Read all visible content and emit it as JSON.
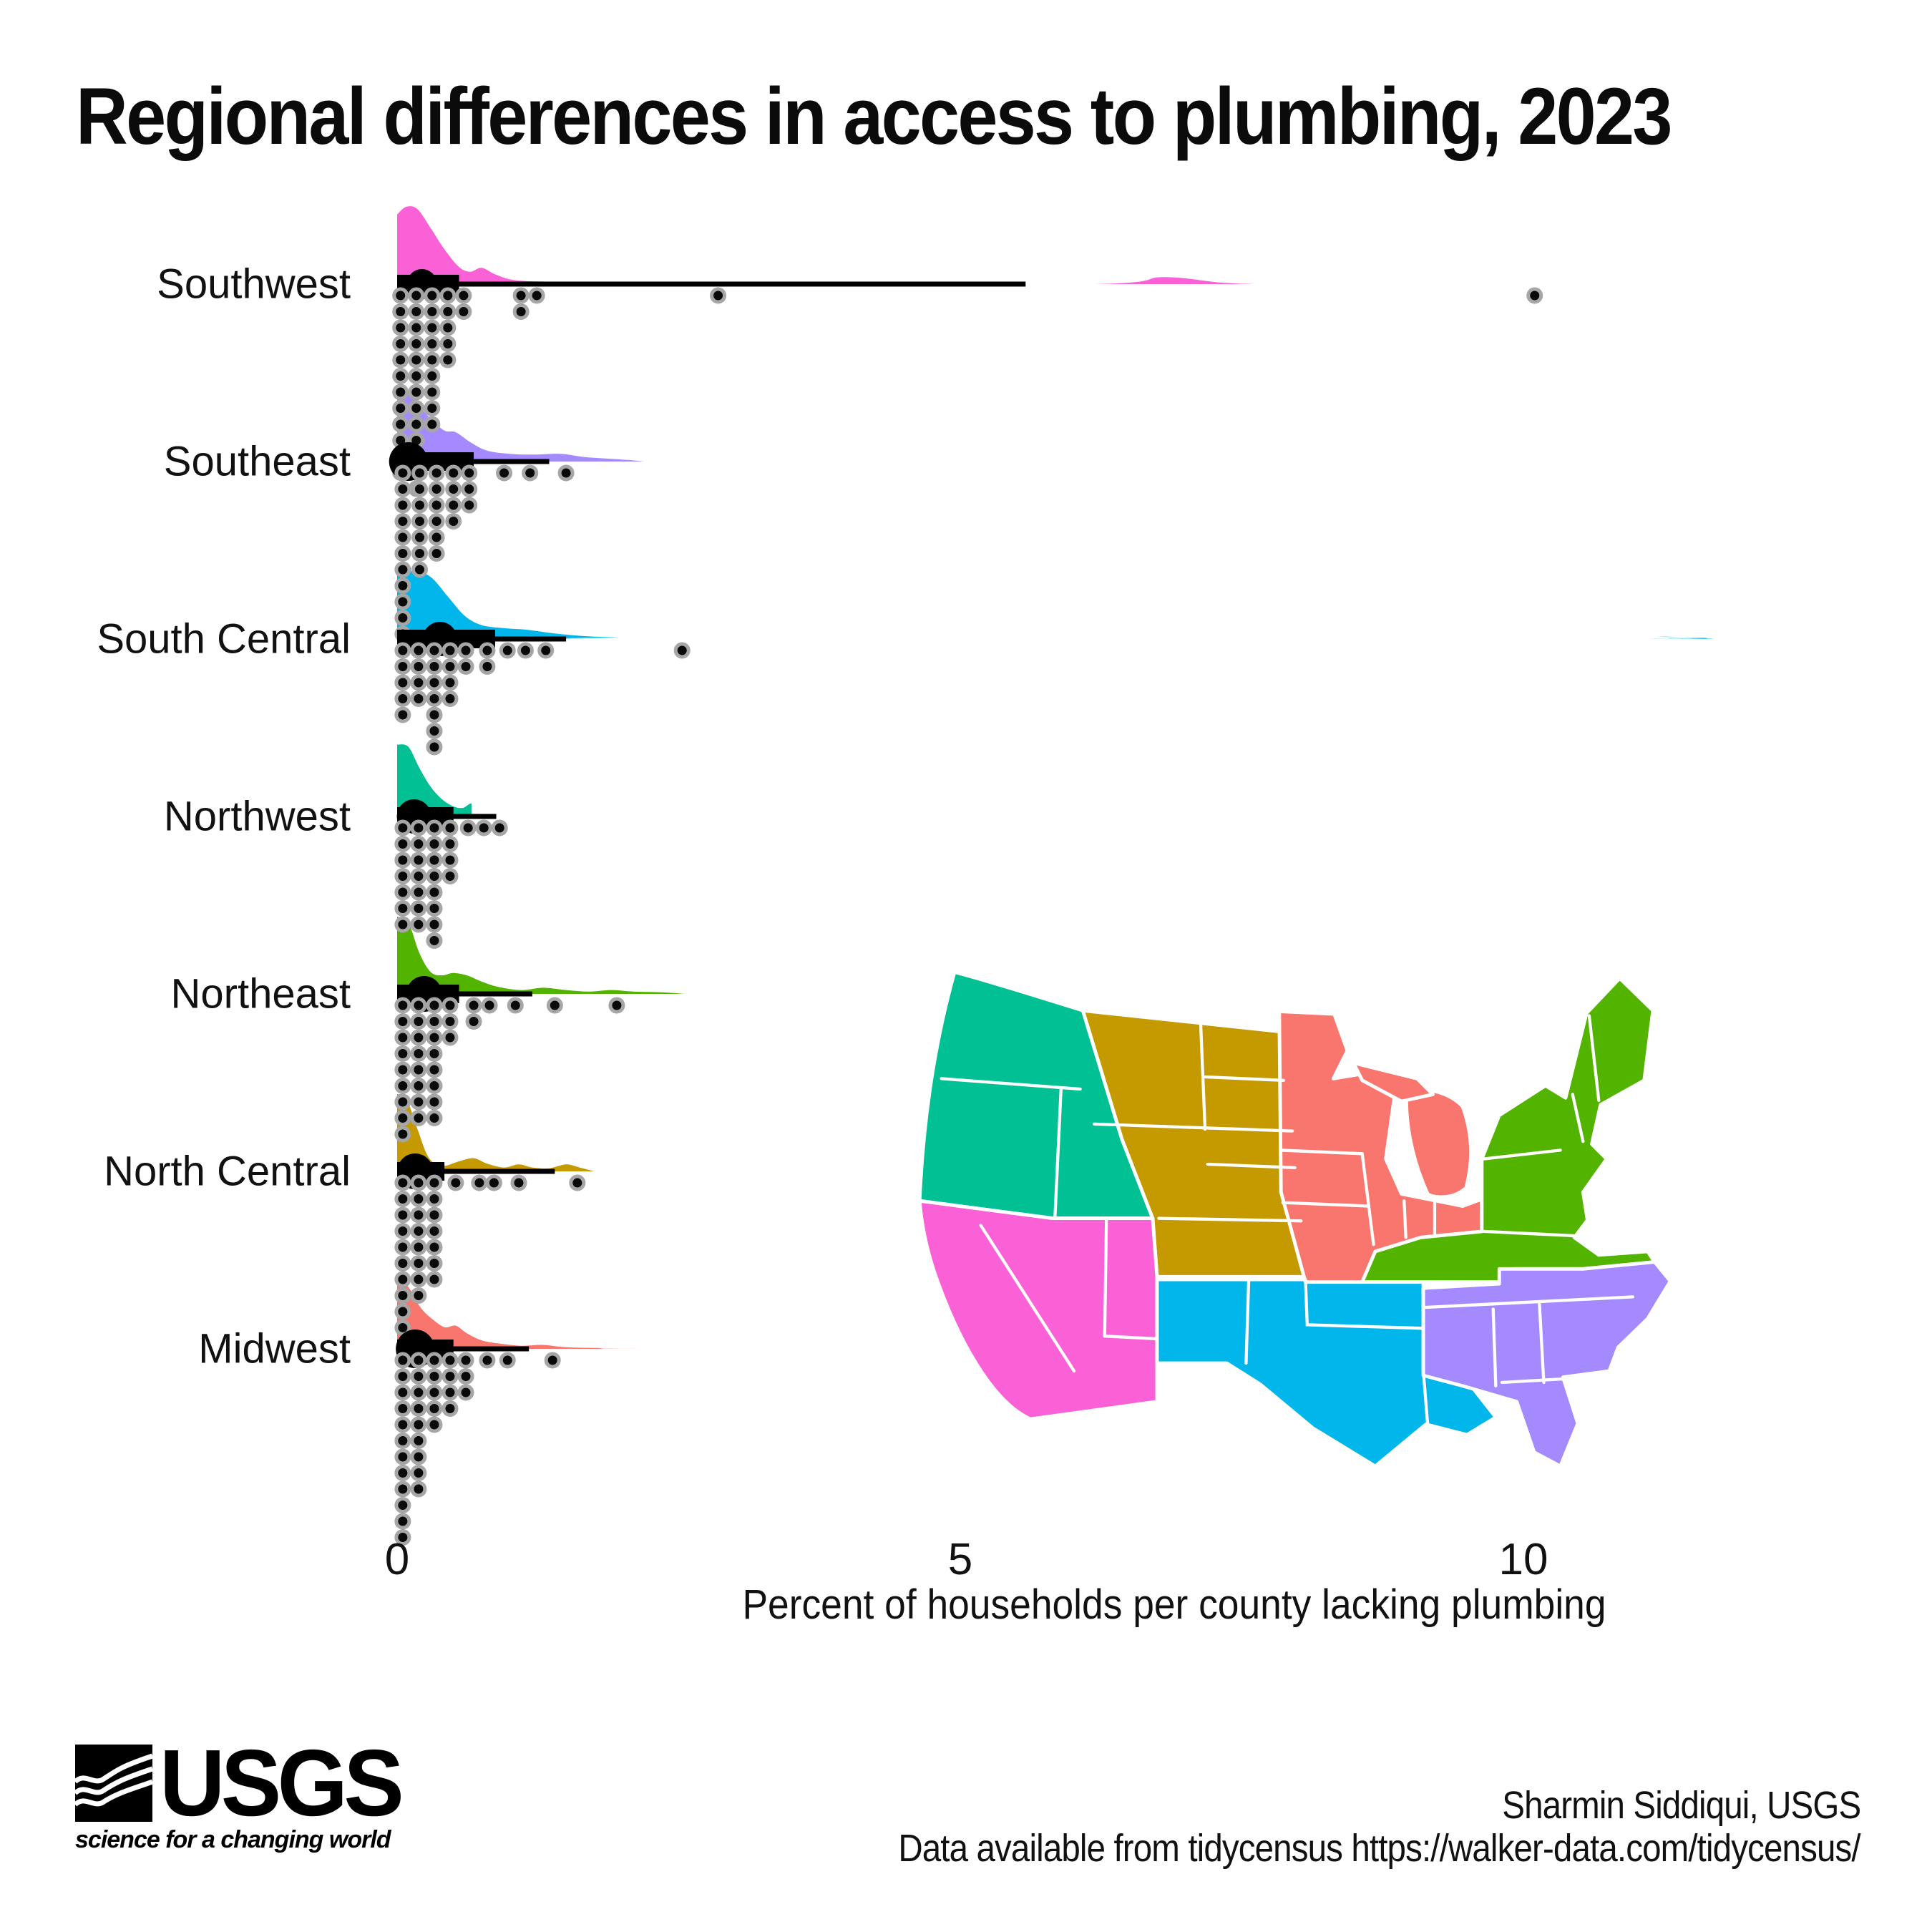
{
  "title": "Regional differences in access to plumbing, 2023",
  "footer": {
    "credit": "Sharmin Siddiqui, USGS",
    "source": "Data available from tidycensus https://walker-data.com/tidycensus/"
  },
  "logo": {
    "org": "USGS",
    "tagline": "science for a changing world"
  },
  "chart_data": {
    "type": "raincloud",
    "xlabel": "Percent of households per county lacking plumbing",
    "xlim": [
      0,
      12
    ],
    "x_ticks": [
      0,
      5,
      10
    ],
    "grid": false,
    "legend": "none",
    "regions": [
      {
        "name": "Southwest",
        "color": "#FB61D7",
        "density": [
          [
            0,
            0.9
          ],
          [
            0.08,
            1.0
          ],
          [
            0.18,
            0.97
          ],
          [
            0.3,
            0.72
          ],
          [
            0.42,
            0.45
          ],
          [
            0.55,
            0.22
          ],
          [
            0.65,
            0.16
          ],
          [
            0.75,
            0.21
          ],
          [
            0.88,
            0.12
          ],
          [
            1.05,
            0.05
          ],
          [
            1.4,
            0.03
          ],
          [
            2.0,
            0.02
          ],
          [
            3.2,
            0.0
          ],
          [
            6.2,
            0.0
          ],
          [
            6.8,
            0.09
          ],
          [
            7.3,
            0.02
          ],
          [
            7.6,
            0
          ]
        ],
        "box": {
          "q1": 0,
          "median": 0.22,
          "q3": 0.55,
          "whisker_high": 5.58
        },
        "median_dot_r": 21,
        "dots": [
          [
            0.03,
            12
          ],
          [
            0.17,
            13
          ],
          [
            0.31,
            9
          ],
          [
            0.45,
            5
          ],
          [
            0.59,
            2
          ],
          [
            1.1,
            2
          ],
          [
            1.24,
            1
          ],
          [
            2.85,
            1
          ],
          [
            10.1,
            1
          ]
        ]
      },
      {
        "name": "Southeast",
        "color": "#A58AFF",
        "density": [
          [
            0,
            0.95
          ],
          [
            0.1,
            0.92
          ],
          [
            0.2,
            0.72
          ],
          [
            0.3,
            0.55
          ],
          [
            0.42,
            0.4
          ],
          [
            0.52,
            0.38
          ],
          [
            0.65,
            0.25
          ],
          [
            0.8,
            0.14
          ],
          [
            1.0,
            0.1
          ],
          [
            1.2,
            0.09
          ],
          [
            1.45,
            0.1
          ],
          [
            1.65,
            0.06
          ],
          [
            1.85,
            0.04
          ],
          [
            2.05,
            0.02
          ],
          [
            2.2,
            0
          ]
        ],
        "box": {
          "q1": 0,
          "median": 0.1,
          "q3": 0.68,
          "whisker_high": 1.35
        },
        "median_dot_r": 27,
        "dots": [
          [
            0.05,
            11
          ],
          [
            0.2,
            7
          ],
          [
            0.35,
            6
          ],
          [
            0.5,
            4
          ],
          [
            0.64,
            3
          ],
          [
            0.95,
            1
          ],
          [
            1.18,
            1
          ],
          [
            1.5,
            1
          ]
        ]
      },
      {
        "name": "South Central",
        "color": "#00B6EB",
        "density": [
          [
            0,
            0.82
          ],
          [
            0.15,
            0.88
          ],
          [
            0.3,
            0.8
          ],
          [
            0.45,
            0.55
          ],
          [
            0.6,
            0.3
          ],
          [
            0.75,
            0.18
          ],
          [
            0.95,
            0.14
          ],
          [
            1.15,
            0.12
          ],
          [
            1.35,
            0.08
          ],
          [
            1.55,
            0.05
          ],
          [
            1.75,
            0.03
          ],
          [
            1.95,
            0.02
          ],
          [
            2.15,
            0.0
          ],
          [
            10.9,
            0.0
          ],
          [
            11.2,
            0.03
          ],
          [
            11.5,
            0.015
          ],
          [
            11.7,
            0
          ]
        ],
        "box": {
          "q1": 0,
          "median": 0.38,
          "q3": 0.87,
          "whisker_high": 1.5
        },
        "median_dot_r": 24,
        "dots": [
          [
            0.05,
            5
          ],
          [
            0.19,
            4
          ],
          [
            0.33,
            7
          ],
          [
            0.47,
            4
          ],
          [
            0.61,
            2
          ],
          [
            0.8,
            2
          ],
          [
            0.98,
            1
          ],
          [
            1.14,
            1
          ],
          [
            1.32,
            1
          ],
          [
            2.53,
            1
          ]
        ]
      },
      {
        "name": "Northwest",
        "color": "#00C094",
        "density": [
          [
            0,
            0.93
          ],
          [
            0.1,
            0.9
          ],
          [
            0.2,
            0.62
          ],
          [
            0.3,
            0.38
          ],
          [
            0.4,
            0.22
          ],
          [
            0.5,
            0.13
          ],
          [
            0.58,
            0.11
          ],
          [
            0.64,
            0.16
          ],
          [
            0.66,
            0.17
          ]
        ],
        "box": {
          "q1": 0,
          "median": 0.15,
          "q3": 0.5,
          "whisker_high": 0.88
        },
        "median_dot_r": 24,
        "dots": [
          [
            0.05,
            7
          ],
          [
            0.19,
            7
          ],
          [
            0.33,
            8
          ],
          [
            0.47,
            4
          ],
          [
            0.63,
            1
          ],
          [
            0.77,
            1
          ],
          [
            0.91,
            1
          ]
        ]
      },
      {
        "name": "Northeast",
        "color": "#53B400",
        "density": [
          [
            0,
            1.0
          ],
          [
            0.1,
            0.92
          ],
          [
            0.2,
            0.52
          ],
          [
            0.3,
            0.28
          ],
          [
            0.4,
            0.24
          ],
          [
            0.5,
            0.27
          ],
          [
            0.62,
            0.24
          ],
          [
            0.75,
            0.16
          ],
          [
            0.9,
            0.09
          ],
          [
            1.1,
            0.05
          ],
          [
            1.3,
            0.08
          ],
          [
            1.5,
            0.05
          ],
          [
            1.7,
            0.03
          ],
          [
            1.9,
            0.05
          ],
          [
            2.1,
            0.03
          ],
          [
            2.35,
            0.02
          ],
          [
            2.55,
            0
          ]
        ],
        "box": {
          "q1": 0,
          "median": 0.24,
          "q3": 0.55,
          "whisker_high": 1.2
        },
        "median_dot_r": 25,
        "dots": [
          [
            0.05,
            9
          ],
          [
            0.19,
            8
          ],
          [
            0.33,
            8
          ],
          [
            0.47,
            3
          ],
          [
            0.68,
            2
          ],
          [
            0.82,
            1
          ],
          [
            1.05,
            1
          ],
          [
            1.4,
            1
          ],
          [
            1.95,
            1
          ]
        ]
      },
      {
        "name": "North Central",
        "color": "#C49A00",
        "density": [
          [
            0,
            1.0
          ],
          [
            0.08,
            0.95
          ],
          [
            0.18,
            0.55
          ],
          [
            0.28,
            0.18
          ],
          [
            0.4,
            0.07
          ],
          [
            0.55,
            0.13
          ],
          [
            0.68,
            0.17
          ],
          [
            0.8,
            0.1
          ],
          [
            0.95,
            0.05
          ],
          [
            1.08,
            0.09
          ],
          [
            1.2,
            0.05
          ],
          [
            1.35,
            0.04
          ],
          [
            1.5,
            0.09
          ],
          [
            1.62,
            0.05
          ],
          [
            1.75,
            0
          ]
        ],
        "box": {
          "q1": 0,
          "median": 0.16,
          "q3": 0.42,
          "whisker_high": 1.4
        },
        "median_dot_r": 25,
        "dots": [
          [
            0.05,
            10
          ],
          [
            0.19,
            8
          ],
          [
            0.33,
            7
          ],
          [
            0.52,
            1
          ],
          [
            0.73,
            1
          ],
          [
            0.86,
            1
          ],
          [
            1.08,
            1
          ],
          [
            1.6,
            1
          ]
        ]
      },
      {
        "name": "Midwest",
        "color": "#F8766D",
        "density": [
          [
            0,
            0.93
          ],
          [
            0.1,
            0.8
          ],
          [
            0.2,
            0.55
          ],
          [
            0.3,
            0.4
          ],
          [
            0.42,
            0.28
          ],
          [
            0.52,
            0.3
          ],
          [
            0.62,
            0.2
          ],
          [
            0.75,
            0.11
          ],
          [
            0.9,
            0.07
          ],
          [
            1.1,
            0.04
          ],
          [
            1.3,
            0.05
          ],
          [
            1.5,
            0.02
          ],
          [
            1.8,
            0.01
          ],
          [
            2.3,
            0.0
          ],
          [
            6.8,
            0.0
          ],
          [
            7.05,
            0.028
          ],
          [
            7.4,
            0.018
          ],
          [
            7.8,
            0
          ]
        ],
        "box": {
          "q1": 0,
          "median": 0.16,
          "q3": 0.5,
          "whisker_high": 1.17
        },
        "median_dot_r": 27,
        "dots": [
          [
            0.05,
            12
          ],
          [
            0.19,
            9
          ],
          [
            0.33,
            5
          ],
          [
            0.47,
            4
          ],
          [
            0.61,
            3
          ],
          [
            0.8,
            1
          ],
          [
            0.98,
            1
          ],
          [
            1.38,
            1
          ]
        ]
      }
    ]
  },
  "map": {
    "regions": [
      {
        "name": "Northwest",
        "color": "#00C094",
        "states": [
          "WA",
          "OR",
          "ID"
        ]
      },
      {
        "name": "North Central",
        "color": "#C49A00",
        "states": [
          "MT",
          "WY",
          "ND",
          "SD",
          "NE",
          "KS",
          "CO"
        ]
      },
      {
        "name": "Southwest",
        "color": "#FB61D7",
        "states": [
          "CA",
          "NV",
          "UT",
          "AZ"
        ]
      },
      {
        "name": "South Central",
        "color": "#00B6EB",
        "states": [
          "NM",
          "TX",
          "OK",
          "LA"
        ]
      },
      {
        "name": "Midwest",
        "color": "#F8766D",
        "states": [
          "MN",
          "IA",
          "MO",
          "WI",
          "IL",
          "MI",
          "IN",
          "OH"
        ]
      },
      {
        "name": "Northeast",
        "color": "#53B400",
        "states": [
          "ME",
          "NH",
          "VT",
          "NY",
          "MA",
          "RI",
          "CT",
          "PA",
          "NJ",
          "DE",
          "MD",
          "WV",
          "VA",
          "KY"
        ]
      },
      {
        "name": "Southeast",
        "color": "#A58AFF",
        "states": [
          "AR",
          "TN",
          "NC",
          "SC",
          "MS",
          "AL",
          "GA",
          "FL"
        ]
      }
    ]
  }
}
